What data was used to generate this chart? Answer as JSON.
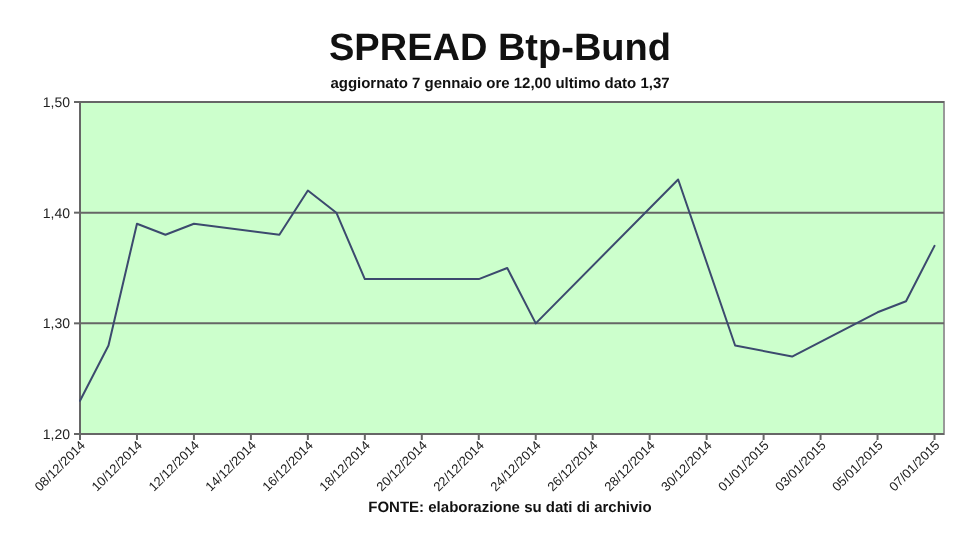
{
  "chart_data": {
    "type": "line",
    "title": "SPREAD Btp-Bund",
    "subtitle": "aggiornato 7 gennaio ore 12,00  ultimo dato  1,37",
    "x": [
      "2014-12-08",
      "2014-12-09",
      "2014-12-10",
      "2014-12-11",
      "2014-12-12",
      "2014-12-15",
      "2014-12-16",
      "2014-12-17",
      "2014-12-18",
      "2014-12-22",
      "2014-12-23",
      "2014-12-24",
      "2014-12-29",
      "2014-12-31",
      "2015-01-02",
      "2015-01-05",
      "2015-01-06",
      "2015-01-07"
    ],
    "series": [
      {
        "color": "#3c4a6e",
        "values": [
          1.23,
          1.28,
          1.39,
          1.38,
          1.39,
          1.38,
          1.42,
          1.4,
          1.34,
          1.34,
          1.35,
          1.3,
          1.43,
          1.28,
          1.27,
          1.31,
          1.32,
          1.37
        ]
      }
    ],
    "xlim": [
      "2014-12-08",
      "2015-01-07T08:00"
    ],
    "xticks": [
      {
        "value": "2014-12-08",
        "label": "08/12/2014"
      },
      {
        "value": "2014-12-10",
        "label": "10/12/2014"
      },
      {
        "value": "2014-12-12",
        "label": "12/12/2014"
      },
      {
        "value": "2014-12-14",
        "label": "14/12/2014"
      },
      {
        "value": "2014-12-16",
        "label": "16/12/2014"
      },
      {
        "value": "2014-12-18",
        "label": "18/12/2014"
      },
      {
        "value": "2014-12-20",
        "label": "20/12/2014"
      },
      {
        "value": "2014-12-22",
        "label": "22/12/2014"
      },
      {
        "value": "2014-12-24",
        "label": "24/12/2014"
      },
      {
        "value": "2014-12-26",
        "label": "26/12/2014"
      },
      {
        "value": "2014-12-28",
        "label": "28/12/2014"
      },
      {
        "value": "2014-12-30",
        "label": "30/12/2014"
      },
      {
        "value": "2015-01-01",
        "label": "01/01/2015"
      },
      {
        "value": "2015-01-03",
        "label": "03/01/2015"
      },
      {
        "value": "2015-01-05",
        "label": "05/01/2015"
      },
      {
        "value": "2015-01-07",
        "label": "07/01/2015"
      }
    ],
    "ylim": [
      1.2,
      1.5
    ],
    "yticks": [
      {
        "value": 1.2,
        "label": "1,20"
      },
      {
        "value": 1.3,
        "label": "1,30"
      },
      {
        "value": 1.4,
        "label": "1,40"
      },
      {
        "value": 1.5,
        "label": "1,50"
      }
    ],
    "grid": "y",
    "marker": "none",
    "line_style": "solid",
    "annotations": [
      "FONTE: elaborazione su dati di archivio"
    ]
  }
}
